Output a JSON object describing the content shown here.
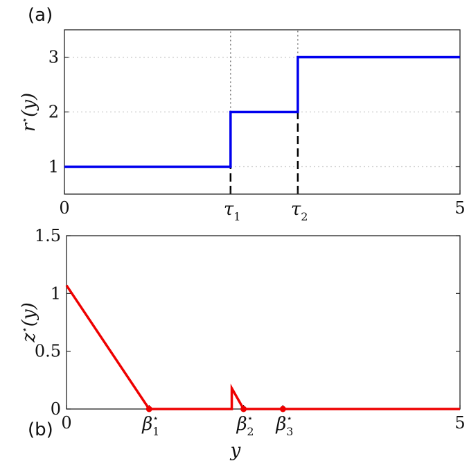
{
  "chart_data": [
    {
      "panel_label": "(a)",
      "type": "line",
      "step": true,
      "ylabel_var": "r",
      "ylabel_sup": "⋆",
      "ylabel_arg": "(y)",
      "xlim": [
        0,
        5
      ],
      "ylim": [
        0.5,
        3.5
      ],
      "xticks": [
        {
          "value": 0,
          "label": "0"
        },
        {
          "value": 5,
          "label": "5"
        }
      ],
      "xticks_special": [
        {
          "value": 2.1,
          "sym": "τ",
          "sub": "1"
        },
        {
          "value": 2.95,
          "sym": "τ",
          "sub": "2"
        }
      ],
      "yticks": [
        {
          "value": 1,
          "label": "1"
        },
        {
          "value": 2,
          "label": "2"
        },
        {
          "value": 3,
          "label": "3"
        }
      ],
      "grid": true,
      "series": [
        {
          "color": "#0000ee",
          "x": [
            0,
            2.1,
            2.1,
            2.95,
            2.95,
            5
          ],
          "y": [
            1,
            1,
            2,
            2,
            3,
            3
          ]
        }
      ],
      "vlines": [
        {
          "x": 2.1,
          "y0": 0.5,
          "y1": 1,
          "style": "dashed-bold"
        },
        {
          "x": 2.1,
          "y0": 2,
          "y1": 3.5,
          "style": "dotted"
        },
        {
          "x": 2.95,
          "y0": 0.5,
          "y1": 2,
          "style": "dashed-bold"
        },
        {
          "x": 2.95,
          "y0": 3,
          "y1": 3.5,
          "style": "dotted"
        }
      ]
    },
    {
      "panel_label": "(b)",
      "type": "line",
      "ylabel_var": "z",
      "ylabel_sup": "⋆",
      "ylabel_arg": "(y)",
      "xlabel": "y",
      "xlim": [
        0,
        5
      ],
      "ylim": [
        0,
        1.5
      ],
      "xticks": [
        {
          "value": 0,
          "label": "0"
        },
        {
          "value": 5,
          "label": "5"
        }
      ],
      "xticks_special": [
        {
          "value": 1.05,
          "sym": "β",
          "sub": "1",
          "sup": "⋆"
        },
        {
          "value": 2.25,
          "sym": "β",
          "sub": "2",
          "sup": "⋆"
        },
        {
          "value": 2.75,
          "sym": "β",
          "sub": "3",
          "sup": "⋆"
        }
      ],
      "yticks": [
        {
          "value": 0,
          "label": "0"
        },
        {
          "value": 0.5,
          "label": "0.5"
        },
        {
          "value": 1,
          "label": "1"
        },
        {
          "value": 1.5,
          "label": "1.5"
        }
      ],
      "grid": false,
      "series": [
        {
          "color": "#ee0000",
          "x": [
            0,
            1.05,
            2.1,
            2.1,
            2.25,
            5
          ],
          "y": [
            1.07,
            0,
            0,
            0.18,
            0,
            0
          ]
        }
      ],
      "markers": [
        {
          "x": 1.05,
          "y": 0
        },
        {
          "x": 2.25,
          "y": 0
        },
        {
          "x": 2.75,
          "y": 0
        }
      ]
    }
  ]
}
